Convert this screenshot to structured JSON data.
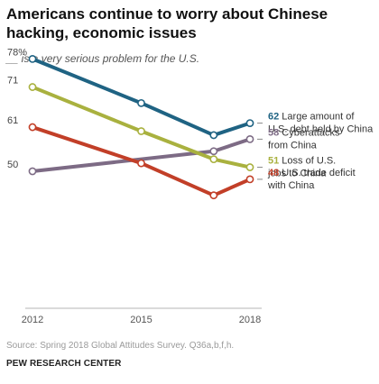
{
  "header": {
    "title": "Americans continue to worry about Chinese hacking, economic issues",
    "subtitle": "__ is a very serious problem for the U.S."
  },
  "footer": {
    "source": "Source: Spring 2018 Global Attitudes Survey. Q36a,b,f,h.",
    "org": "PEW RESEARCH CENTER"
  },
  "chart_data": {
    "type": "line",
    "title": "Americans continue to worry about Chinese hacking, economic issues",
    "subtitle": "__ is a very serious problem for the U.S.",
    "x": [
      2012,
      2015,
      2017,
      2018
    ],
    "x_tick_labels": [
      "2012",
      "2015",
      "2018"
    ],
    "ylim": [
      35,
      85
    ],
    "grid": false,
    "legend": "end-labels-right",
    "series": [
      {
        "name": "Large amount of U.S. debt held by China",
        "label_lines": [
          "Large amount of",
          "U.S. debt held by China"
        ],
        "color": "#1f6383",
        "values": [
          78,
          67,
          59,
          62
        ],
        "start_label": "78%",
        "end_label": "62"
      },
      {
        "name": "Cyberattacks from China",
        "label_lines": [
          "Cyberattacks",
          "from China"
        ],
        "color": "#7d6b85",
        "values": [
          50,
          null,
          55,
          58
        ],
        "start_label": "50",
        "end_label": "58"
      },
      {
        "name": "Loss of U.S. jobs to China",
        "label_lines": [
          "Loss of U.S.",
          "jobs to China"
        ],
        "color": "#a9b13f",
        "values": [
          71,
          60,
          53,
          51
        ],
        "start_label": "71",
        "end_label": "51"
      },
      {
        "name": "U.S. trade deficit with China",
        "label_lines": [
          "U.S. trade deficit",
          "with China"
        ],
        "color": "#c23f28",
        "values": [
          61,
          52,
          44,
          48
        ],
        "start_label": "61",
        "end_label": "48"
      }
    ]
  }
}
